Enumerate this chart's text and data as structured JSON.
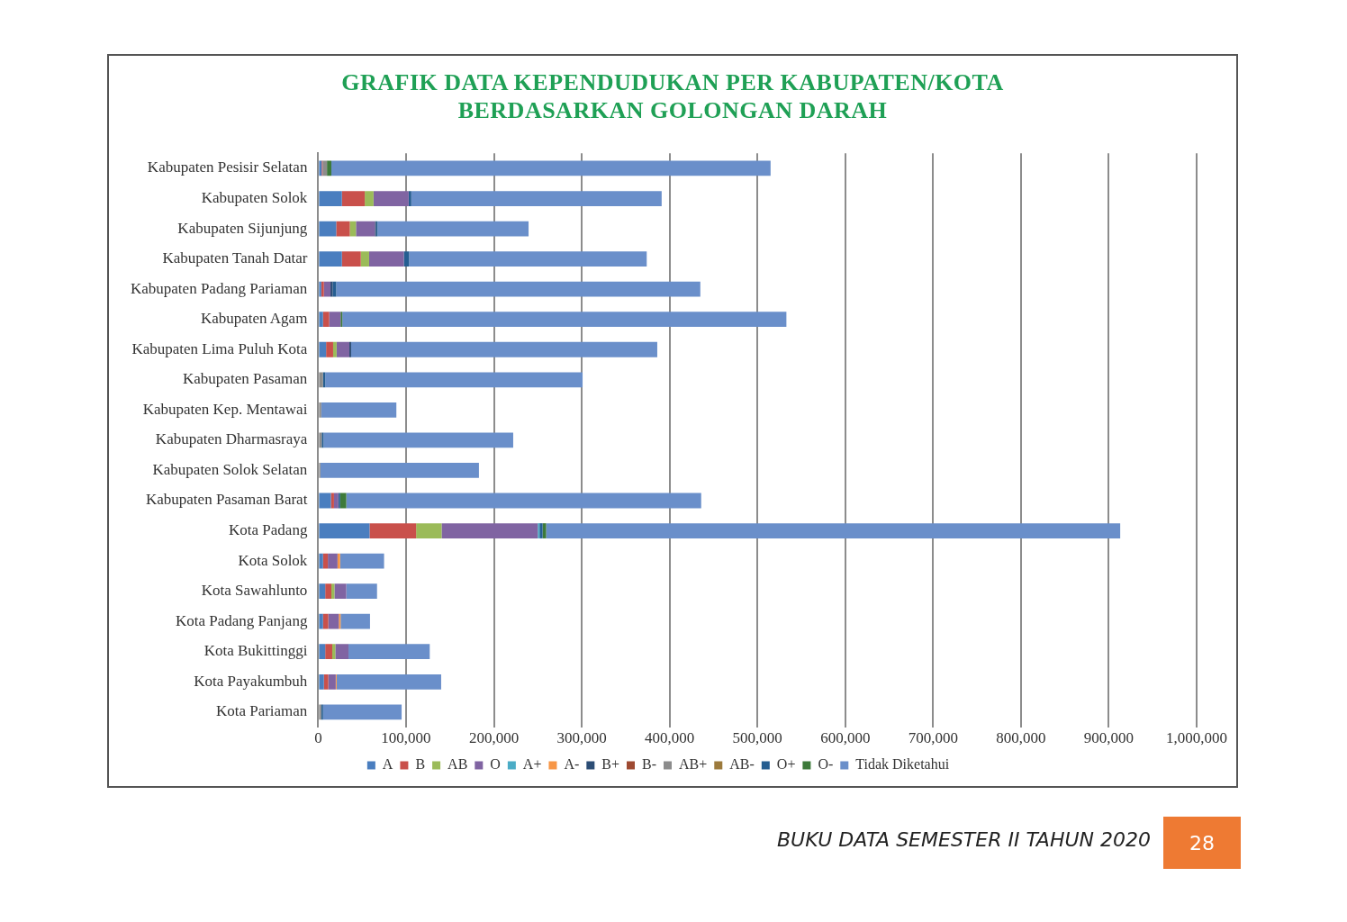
{
  "chart_data": {
    "type": "bar",
    "orientation": "horizontal",
    "stacked": true,
    "title": "GRAFIK DATA KEPENDUDUKAN PER KABUPATEN/KOTA\nBERDASARKAN GOLONGAN DARAH",
    "categories": [
      "Kabupaten Pesisir Selatan",
      "Kabupaten Solok",
      "Kabupaten Sijunjung",
      "Kabupaten Tanah Datar",
      "Kabupaten Padang Pariaman",
      "Kabupaten Agam",
      "Kabupaten Lima Puluh Kota",
      "Kabupaten Pasaman",
      "Kabupaten Kep. Mentawai",
      "Kabupaten Dharmasraya",
      "Kabupaten Solok Selatan",
      "Kabupaten Pasaman Barat",
      "Kota Padang",
      "Kota Solok",
      "Kota Sawahlunto",
      "Kota Padang Panjang",
      "Kota Bukittinggi",
      "Kota Payakumbuh",
      "Kota Pariaman"
    ],
    "series": [
      {
        "name": "A",
        "color": "#4a7ebf",
        "values": [
          4000,
          27000,
          20500,
          27000,
          3500,
          5500,
          9000,
          0,
          0,
          0,
          0,
          14500,
          58500,
          5500,
          8000,
          5500,
          8000,
          6500,
          0
        ]
      },
      {
        "name": "B",
        "color": "#c9504b",
        "values": [
          1000,
          26000,
          15500,
          21500,
          3000,
          7000,
          8000,
          0,
          0,
          0,
          0,
          3500,
          53000,
          5500,
          7000,
          6000,
          8000,
          5000,
          0
        ]
      },
      {
        "name": "AB",
        "color": "#9bbb59",
        "values": [
          0,
          10000,
          7000,
          9500,
          0,
          0,
          4000,
          0,
          0,
          0,
          0,
          0,
          29000,
          0,
          3500,
          0,
          3500,
          0,
          0
        ]
      },
      {
        "name": "O",
        "color": "#8064a2",
        "values": [
          0,
          40000,
          21500,
          39500,
          7500,
          13000,
          14500,
          0,
          0,
          0,
          0,
          5000,
          109500,
          11000,
          13500,
          12000,
          15000,
          8500,
          0
        ]
      },
      {
        "name": "A+",
        "color": "#4bacc6",
        "values": [
          0,
          0,
          0,
          0,
          0,
          0,
          0,
          0,
          0,
          0,
          0,
          0,
          2000,
          0,
          0,
          0,
          0,
          0,
          0
        ]
      },
      {
        "name": "A-",
        "color": "#f79646",
        "values": [
          0,
          0,
          0,
          0,
          0,
          0,
          0,
          0,
          0,
          0,
          0,
          0,
          0,
          3000,
          0,
          2000,
          0,
          1000,
          0
        ]
      },
      {
        "name": "B+",
        "color": "#2c4d75",
        "values": [
          0,
          0,
          1500,
          0,
          2500,
          0,
          2000,
          0,
          0,
          0,
          0,
          0,
          0,
          0,
          0,
          0,
          0,
          0,
          0
        ]
      },
      {
        "name": "B-",
        "color": "#9e4a32",
        "values": [
          0,
          0,
          0,
          0,
          0,
          0,
          0,
          0,
          0,
          0,
          0,
          0,
          0,
          0,
          0,
          0,
          0,
          0,
          0
        ]
      },
      {
        "name": "AB+",
        "color": "#8c8c8c",
        "values": [
          5000,
          0,
          0,
          0,
          0,
          0,
          0,
          5500,
          3500,
          4000,
          2500,
          0,
          0,
          0,
          0,
          0,
          0,
          0,
          3500
        ]
      },
      {
        "name": "AB-",
        "color": "#9c7a3c",
        "values": [
          0,
          0,
          0,
          0,
          0,
          0,
          0,
          0,
          0,
          0,
          0,
          0,
          0,
          0,
          0,
          0,
          0,
          0,
          0
        ]
      },
      {
        "name": "O+",
        "color": "#255e91",
        "values": [
          0,
          3000,
          1500,
          6000,
          4000,
          0,
          0,
          2500,
          0,
          2000,
          0,
          2000,
          3500,
          0,
          0,
          0,
          0,
          0,
          2000
        ]
      },
      {
        "name": "O-",
        "color": "#3d7a3a",
        "values": [
          5000,
          0,
          0,
          0,
          0,
          2000,
          0,
          0,
          0,
          0,
          0,
          7000,
          4000,
          0,
          0,
          0,
          0,
          0,
          0
        ]
      },
      {
        "name": "Tidak Diketahui",
        "color": "#6a8fca",
        "values": [
          500000,
          285000,
          172000,
          270500,
          414500,
          505500,
          348500,
          293000,
          85500,
          216000,
          180500,
          404000,
          653500,
          50000,
          35000,
          33500,
          92500,
          119000,
          89500
        ]
      }
    ],
    "xlim": [
      0,
      1000000
    ],
    "xticks": [
      {
        "value": 0,
        "label": "0"
      },
      {
        "value": 100000,
        "label": "100,000"
      },
      {
        "value": 200000,
        "label": "200,000"
      },
      {
        "value": 300000,
        "label": "300,000"
      },
      {
        "value": 400000,
        "label": "400,000"
      },
      {
        "value": 500000,
        "label": "500,000"
      },
      {
        "value": 600000,
        "label": "600,000"
      },
      {
        "value": 700000,
        "label": "700,000"
      },
      {
        "value": 800000,
        "label": "800,000"
      },
      {
        "value": 900000,
        "label": "900,000"
      },
      {
        "value": 1000000,
        "label": "1,000,000"
      }
    ],
    "grid": "x",
    "legend": "bottom",
    "annotations": [
      "BUKU DATA SEMESTER II TAHUN 2020",
      "28"
    ]
  }
}
